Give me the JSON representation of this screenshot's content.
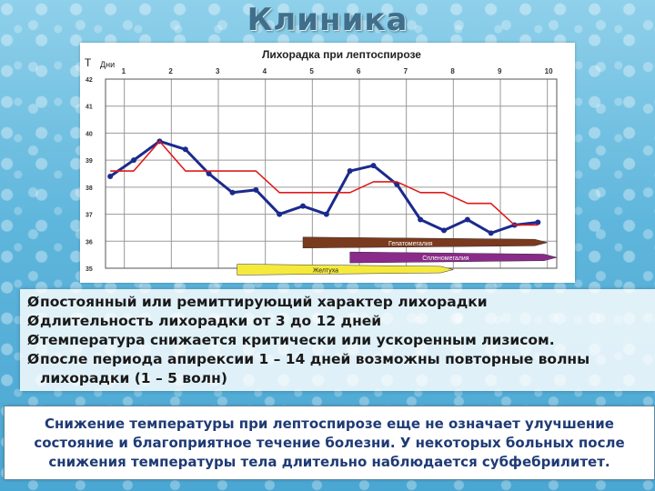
{
  "slide": {
    "title": "Клиника"
  },
  "bullets": [
    {
      "text": "постоянный или ремиттирующий характер лихорадки"
    },
    {
      "text": "длительность лихорадки от 3 до 12 дней"
    },
    {
      "text": "температура снижается критически или ускоренным лизисом."
    },
    {
      "text": "после периода апирексии 1 – 14 дней возможны повторные волны",
      "cont": "лихорадки (1 – 5 волн)"
    }
  ],
  "summary": {
    "text": "Снижение температуры при лептоспирозе еще не означает улучшение состояние и благоприятное течение болезни. У некоторых больных после снижения температуры тела длительно наблюдается субфебрилитет."
  },
  "chart_data": {
    "type": "line",
    "title": "Лихорадка при лептоспирозе",
    "ylabel": "T",
    "xlabel": "Дни",
    "x_ticks": [
      "1",
      "2",
      "3",
      "4",
      "5",
      "6",
      "7",
      "8",
      "9",
      "10"
    ],
    "y_ticks": [
      "42",
      "41",
      "40",
      "39",
      "38",
      "37",
      "36",
      "35"
    ],
    "ylim": [
      35,
      42
    ],
    "xlim": [
      0.6,
      10.2
    ],
    "grid": true,
    "series": [
      {
        "color": "#1b2a8c",
        "markers": true,
        "x": [
          0.7,
          1.2,
          1.75,
          2.3,
          2.8,
          3.3,
          3.8,
          4.3,
          4.8,
          5.3,
          5.8,
          6.3,
          6.8,
          7.3,
          7.8,
          8.3,
          8.8,
          9.3,
          9.8
        ],
        "y": [
          38.4,
          39.0,
          39.7,
          39.4,
          38.5,
          37.8,
          37.9,
          37.0,
          37.3,
          37.0,
          38.6,
          38.8,
          38.1,
          36.8,
          36.4,
          36.8,
          36.3,
          36.6,
          36.7
        ]
      },
      {
        "color": "#e01a1a",
        "markers": false,
        "x": [
          0.7,
          1.2,
          1.75,
          2.3,
          2.8,
          3.3,
          3.8,
          4.3,
          4.8,
          5.3,
          5.8,
          6.3,
          6.8,
          7.3,
          7.8,
          8.3,
          8.8,
          9.3,
          9.8
        ],
        "y": [
          38.6,
          38.6,
          39.7,
          38.6,
          38.6,
          38.6,
          38.6,
          37.8,
          37.8,
          37.8,
          37.8,
          38.2,
          38.2,
          37.8,
          37.8,
          37.4,
          37.4,
          36.6,
          36.6
        ]
      }
    ],
    "bands": [
      {
        "label": "Гепатомегалия",
        "color": "#7a3a1e",
        "x_start": 4.8,
        "x_end": 10.0,
        "y": 35.95
      },
      {
        "label": "Спленомегалия",
        "color": "#8a2a8a",
        "x_start": 5.8,
        "x_end": 10.2,
        "y": 35.4
      },
      {
        "label": "Желтуха",
        "color": "#f5ea3c",
        "x_start": 3.4,
        "x_end": 8.0,
        "y": 34.95
      }
    ]
  }
}
